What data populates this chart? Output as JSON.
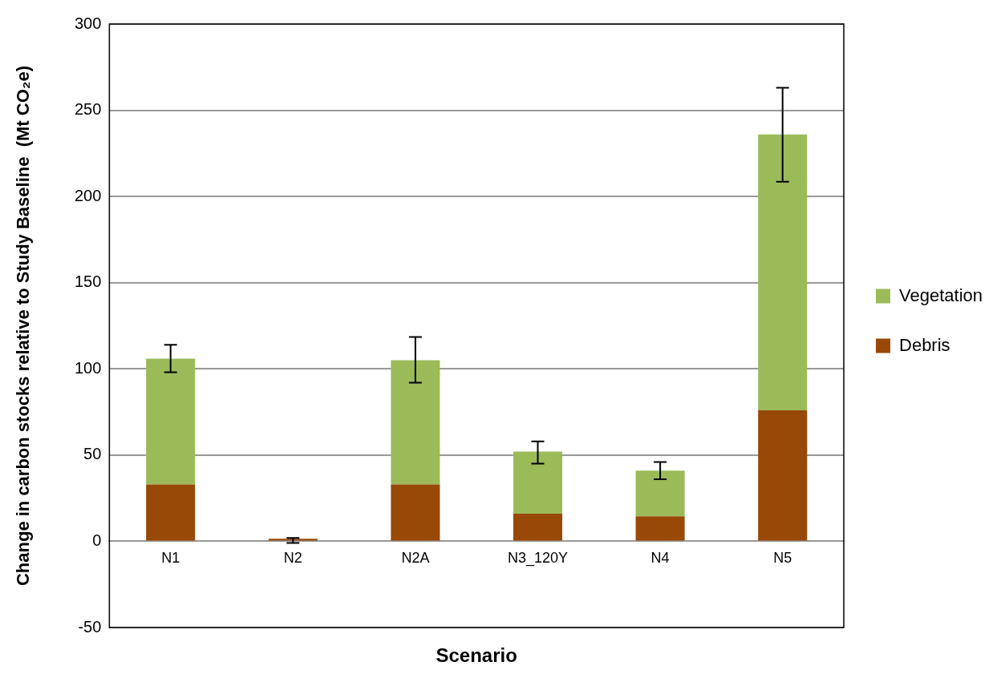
{
  "chart_data": {
    "type": "bar",
    "stacked": true,
    "xlabel": "Scenario",
    "ylabel": "Change in carbon stocks relative to Study Baseline  (Mt CO₂e)",
    "categories": [
      "N1",
      "N2",
      "N2A",
      "N3_120Y",
      "N4",
      "N5"
    ],
    "series": [
      {
        "name": "Debris",
        "color": "#984807",
        "values": [
          33,
          1.5,
          33,
          16,
          14.5,
          76
        ]
      },
      {
        "name": "Vegetation",
        "color": "#9bbb59",
        "values": [
          73,
          0,
          72,
          36,
          26.5,
          160
        ],
        "errors": [
          [
            98,
            114
          ],
          [
            -1,
            2
          ],
          [
            92,
            118.5
          ],
          [
            45,
            58
          ],
          [
            36,
            46
          ],
          [
            208.5,
            263
          ]
        ]
      }
    ],
    "ylim": [
      -50,
      300
    ],
    "yticks": [
      -50,
      0,
      50,
      100,
      150,
      200,
      250,
      300
    ],
    "grid": "y",
    "legend": "right"
  }
}
